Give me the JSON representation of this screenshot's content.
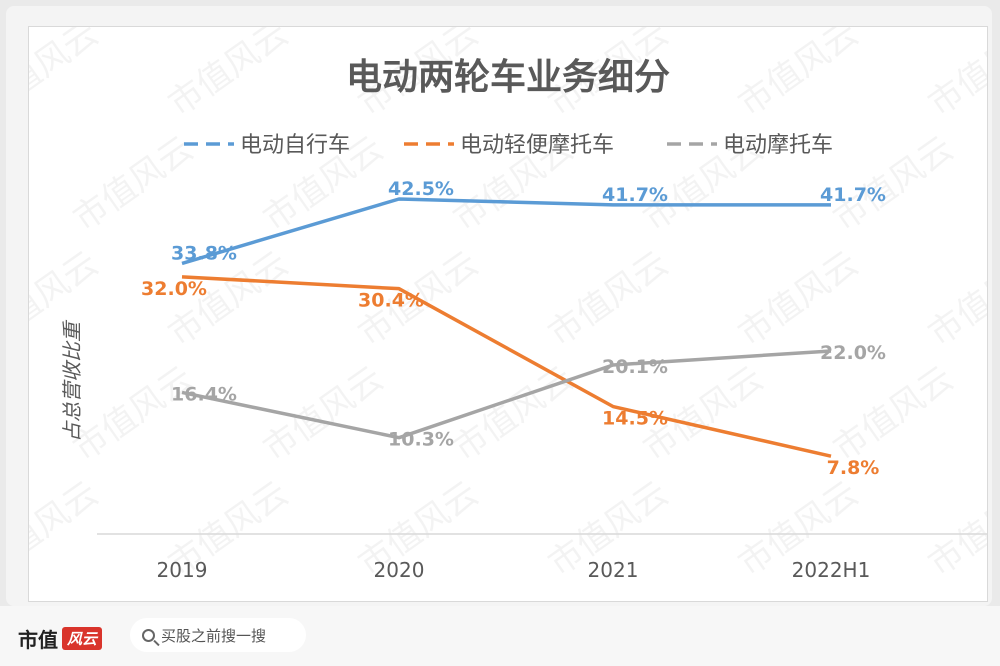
{
  "chart_data": {
    "type": "line",
    "title": "电动两轮车业务细分",
    "xlabel": "",
    "ylabel": "占总营收比重",
    "categories": [
      "2019",
      "2020",
      "2021",
      "2022H1"
    ],
    "ylim": [
      0,
      50
    ],
    "grid": false,
    "legend_position": "top",
    "series": [
      {
        "name": "电动自行车",
        "color": "#5b9bd5",
        "values": [
          33.8,
          42.5,
          41.7,
          41.7
        ],
        "labels": [
          "33.8%",
          "42.5%",
          "41.7%",
          "41.7%"
        ]
      },
      {
        "name": "电动轻便摩托车",
        "color": "#ed7d31",
        "values": [
          32.0,
          30.4,
          14.5,
          7.8
        ],
        "labels": [
          "32.0%",
          "30.4%",
          "14.5%",
          "7.8%"
        ]
      },
      {
        "name": "电动摩托车",
        "color": "#a5a5a5",
        "values": [
          16.4,
          10.3,
          20.1,
          22.0
        ],
        "labels": [
          "16.4%",
          "10.3%",
          "20.1%",
          "22.0%"
        ]
      }
    ]
  },
  "watermark": "市值风云",
  "footer": {
    "brand_text": "市值",
    "brand_badge": "风云",
    "search_placeholder": "买股之前搜一搜"
  }
}
